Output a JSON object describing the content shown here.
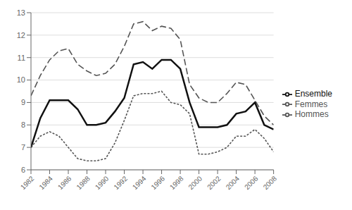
{
  "chart_data": {
    "type": "line",
    "x": [
      1982,
      1983,
      1984,
      1985,
      1986,
      1987,
      1988,
      1989,
      1990,
      1991,
      1992,
      1993,
      1994,
      1995,
      1996,
      1997,
      1998,
      1999,
      2000,
      2001,
      2002,
      2003,
      2004,
      2005,
      2006,
      2007,
      2008
    ],
    "series": [
      {
        "name": "Hommes",
        "color": "#555555",
        "line_style": "dotted",
        "values": [
          7.0,
          7.5,
          7.7,
          7.5,
          7.0,
          6.5,
          6.4,
          6.4,
          6.5,
          7.2,
          8.2,
          9.3,
          9.4,
          9.4,
          9.5,
          9.0,
          8.9,
          8.5,
          6.7,
          6.7,
          6.8,
          7.0,
          7.5,
          7.5,
          7.8,
          7.4,
          6.8
        ]
      },
      {
        "name": "Femmes",
        "color": "#555555",
        "line_style": "dashed",
        "values": [
          9.3,
          10.2,
          10.9,
          11.3,
          11.4,
          10.7,
          10.4,
          10.2,
          10.3,
          10.7,
          11.5,
          12.5,
          12.6,
          12.2,
          12.4,
          12.3,
          11.8,
          9.8,
          9.2,
          9.0,
          9.0,
          9.4,
          9.9,
          9.8,
          9.1,
          8.4,
          8.0
        ]
      },
      {
        "name": "Ensemble",
        "color": "#111111",
        "line_style": "solid",
        "values": [
          7.0,
          8.3,
          9.1,
          9.1,
          9.1,
          8.7,
          8.0,
          8.0,
          8.1,
          8.6,
          9.2,
          10.7,
          10.8,
          10.5,
          10.9,
          10.9,
          10.5,
          9.0,
          7.9,
          7.9,
          7.9,
          8.0,
          8.5,
          8.6,
          9.0,
          8.0,
          7.8
        ]
      }
    ],
    "xlim": [
      1982,
      2008
    ],
    "xticks": [
      1982,
      1984,
      1986,
      1988,
      1990,
      1992,
      1994,
      1996,
      1998,
      2000,
      2002,
      2004,
      2006,
      2008
    ],
    "ylim": [
      6,
      13
    ],
    "yticks": [
      6,
      7,
      8,
      9,
      10,
      11,
      12,
      13
    ],
    "grid": true,
    "legend": "right"
  }
}
